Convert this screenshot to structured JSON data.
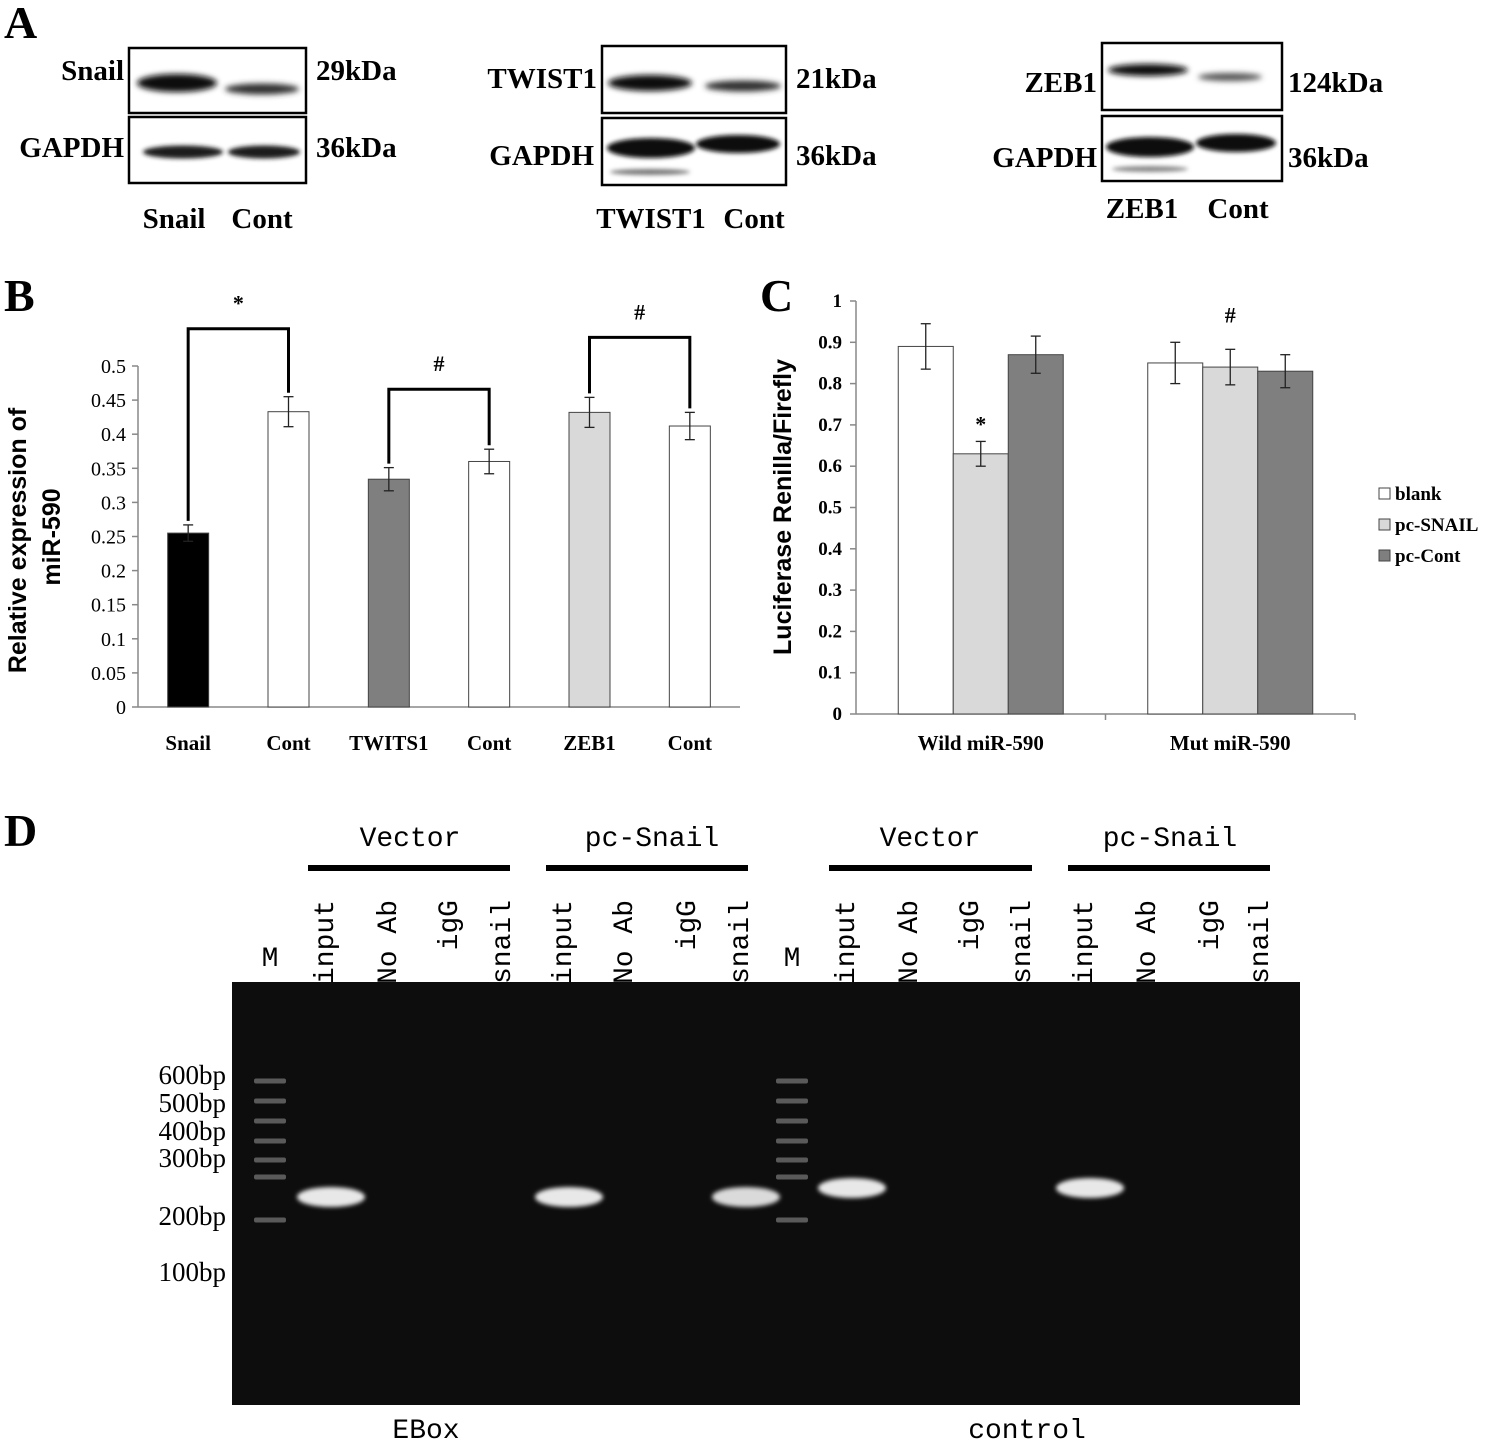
{
  "panel_labels": {
    "a": "A",
    "b": "B",
    "c": "C",
    "d": "D"
  },
  "panel_a": {
    "blots": [
      {
        "target": "Snail",
        "target_kda": "29kDa",
        "control": "GAPDH",
        "control_kda": "36kDa",
        "lane_labels": [
          "Snail",
          "Cont"
        ],
        "band_strength": [
          1.0,
          0.6
        ],
        "control_strength": [
          0.9,
          0.9
        ]
      },
      {
        "target": "TWIST1",
        "target_kda": "21kDa",
        "control": "GAPDH",
        "control_kda": "36kDa",
        "lane_labels": [
          "TWIST1",
          "Cont"
        ],
        "band_strength": [
          0.95,
          0.6
        ],
        "control_strength": [
          1.0,
          1.0
        ]
      },
      {
        "target": "ZEB1",
        "target_kda": "124kDa",
        "control": "GAPDH",
        "control_kda": "36kDa",
        "lane_labels": [
          "ZEB1",
          "Cont"
        ],
        "band_strength": [
          0.9,
          0.35
        ],
        "control_strength": [
          1.0,
          1.0
        ]
      }
    ]
  },
  "chart_data": [
    {
      "type": "bar",
      "panel": "B",
      "title": "",
      "xlabel": "",
      "ylabel": "Relative expression of miR-590",
      "ylabel_lines": [
        "Relative expression of",
        "miR-590"
      ],
      "ylim": [
        0,
        0.5
      ],
      "yticks": [
        "0",
        "0.05",
        "0.1",
        "0.15",
        "0.2",
        "0.25",
        "0.3",
        "0.35",
        "0.4",
        "0.45",
        "0.5"
      ],
      "categories": [
        "Snail",
        "Cont",
        "TWITS1",
        "Cont",
        "ZEB1",
        "Cont"
      ],
      "values": [
        0.255,
        0.433,
        0.334,
        0.36,
        0.432,
        0.412
      ],
      "errors": [
        0.012,
        0.022,
        0.017,
        0.018,
        0.022,
        0.02
      ],
      "bar_colors": [
        "#000000",
        "#ffffff",
        "#7f7f7f",
        "#ffffff",
        "#d9d9d9",
        "#ffffff"
      ],
      "grid": false,
      "legend": "none",
      "brackets": [
        {
          "between": [
            0,
            1
          ],
          "label": "*"
        },
        {
          "between": [
            2,
            3
          ],
          "label": "#"
        },
        {
          "between": [
            4,
            5
          ],
          "label": "#"
        }
      ]
    },
    {
      "type": "bar",
      "panel": "C",
      "title": "",
      "xlabel": "",
      "ylabel": "Luciferase Renilla/Firefly",
      "ylim": [
        0,
        1
      ],
      "yticks": [
        "0",
        "0.1",
        "0.2",
        "0.3",
        "0.4",
        "0.5",
        "0.6",
        "0.7",
        "0.8",
        "0.9",
        "1"
      ],
      "categories": [
        "Wild miR-590",
        "Mut miR-590"
      ],
      "series": [
        {
          "name": "blank",
          "color": "#ffffff",
          "values": [
            0.89,
            0.85
          ],
          "errors": [
            0.055,
            0.05
          ]
        },
        {
          "name": "pc-SNAIL",
          "color": "#d9d9d9",
          "values": [
            0.63,
            0.84
          ],
          "errors": [
            0.03,
            0.043
          ]
        },
        {
          "name": "pc-Cont",
          "color": "#7f7f7f",
          "values": [
            0.87,
            0.83
          ],
          "errors": [
            0.045,
            0.04
          ]
        }
      ],
      "annotations": [
        {
          "category": 0,
          "series": 1,
          "label": "*"
        },
        {
          "category": 1,
          "label": "#"
        }
      ],
      "grid": false,
      "legend": "right"
    }
  ],
  "panel_d": {
    "group_headers": [
      "Vector",
      "pc-Snail",
      "Vector",
      "pc-Snail"
    ],
    "marker_label": "M",
    "lane_labels": [
      "input",
      "No Ab",
      "igG",
      "snail"
    ],
    "marker_sizes": [
      "600bp",
      "500bp",
      "400bp",
      "300bp",
      "200bp",
      "100bp"
    ],
    "gel_names": [
      "EBox",
      "control"
    ],
    "bands": [
      {
        "gel": 0,
        "group": 0,
        "lane": 0,
        "strength": 1.0
      },
      {
        "gel": 0,
        "group": 1,
        "lane": 0,
        "strength": 1.0
      },
      {
        "gel": 0,
        "group": 1,
        "lane": 3,
        "strength": 0.85
      },
      {
        "gel": 1,
        "group": 0,
        "lane": 0,
        "strength": 1.0
      },
      {
        "gel": 1,
        "group": 1,
        "lane": 0,
        "strength": 1.0
      }
    ]
  }
}
